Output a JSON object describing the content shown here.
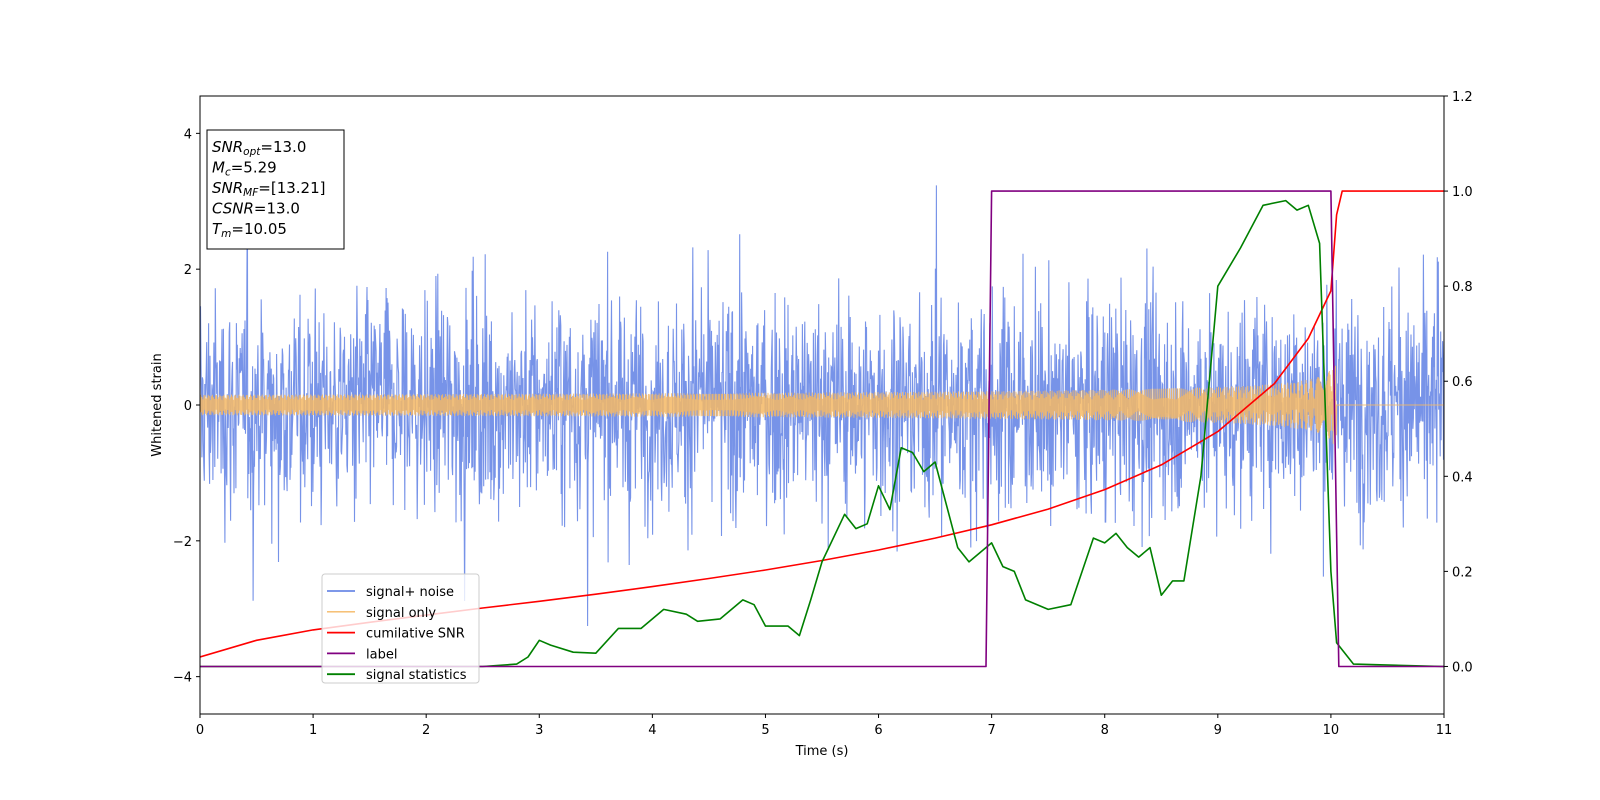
{
  "chart_data": {
    "type": "line",
    "xlabel": "Time (s)",
    "ylabel_left": "Whitened strain",
    "ylabel_right": "",
    "xlim": [
      0,
      11
    ],
    "ylim_left": [
      -4.55,
      4.55
    ],
    "ylim_right": [
      -0.1,
      1.2
    ],
    "x_ticks": [
      0,
      1,
      2,
      3,
      4,
      5,
      6,
      7,
      8,
      9,
      10,
      11
    ],
    "y_left_ticks": [
      -4,
      -2,
      0,
      2,
      4
    ],
    "y_right_ticks": [
      0.0,
      0.2,
      0.4,
      0.6,
      0.8,
      1.0,
      1.2
    ],
    "x_tick_labels": [
      "0",
      "1",
      "2",
      "3",
      "4",
      "5",
      "6",
      "7",
      "8",
      "9",
      "10",
      "11"
    ],
    "y_left_tick_labels": [
      "−4",
      "−2",
      "0",
      "2",
      "4"
    ],
    "y_right_tick_labels": [
      "0.0",
      "0.2",
      "0.4",
      "0.6",
      "0.8",
      "1.0",
      "1.2"
    ],
    "grid": false,
    "legend_position": "lower-left",
    "info_box": {
      "lines": [
        {
          "symbol": "SNR",
          "subscript": "opt",
          "value": "=13.0"
        },
        {
          "symbol": "M",
          "subscript": "c",
          "value": "=5.29"
        },
        {
          "symbol": "SNR",
          "subscript": "MF",
          "value": "=[13.21]"
        },
        {
          "symbol": "CSNR",
          "subscript": "",
          "value": "=13.0"
        },
        {
          "symbol": "T",
          "subscript": "m",
          "value": "=10.05"
        }
      ]
    },
    "colors": {
      "noise": "#6b8ae6",
      "signal": "#f5b865",
      "cumulative": "#ff0000",
      "label": "#800080",
      "statistics": "#008000"
    },
    "series": [
      {
        "name": "signal+ noise",
        "axis": "left",
        "kind": "noise-band",
        "sigma": 0.8,
        "typical_extent": [
          -2.2,
          2.2
        ],
        "extremes": [
          -4.1,
          4.18
        ],
        "x_range": [
          0,
          11
        ]
      },
      {
        "name": "signal only",
        "axis": "left",
        "kind": "chirp",
        "amplitude_start": 0.06,
        "amplitude_peak": 0.72,
        "merger_time": 10.05,
        "x_range": [
          0,
          11
        ]
      },
      {
        "name": "cumilative SNR",
        "axis": "right",
        "points": [
          [
            0,
            0.02
          ],
          [
            0.5,
            0.055
          ],
          [
            1,
            0.077
          ],
          [
            1.5,
            0.093
          ],
          [
            2,
            0.108
          ],
          [
            2.5,
            0.123
          ],
          [
            3,
            0.137
          ],
          [
            3.5,
            0.152
          ],
          [
            4,
            0.168
          ],
          [
            4.5,
            0.185
          ],
          [
            5,
            0.203
          ],
          [
            5.5,
            0.223
          ],
          [
            6,
            0.245
          ],
          [
            6.5,
            0.27
          ],
          [
            7,
            0.298
          ],
          [
            7.5,
            0.331
          ],
          [
            8,
            0.372
          ],
          [
            8.5,
            0.424
          ],
          [
            9,
            0.494
          ],
          [
            9.5,
            0.595
          ],
          [
            9.8,
            0.69
          ],
          [
            10,
            0.79
          ],
          [
            10.05,
            0.95
          ],
          [
            10.1,
            1.0
          ],
          [
            11,
            1.0
          ]
        ]
      },
      {
        "name": "label",
        "axis": "right",
        "points": [
          [
            0,
            0.0
          ],
          [
            6.95,
            0.0
          ],
          [
            7.0,
            1.0
          ],
          [
            10.0,
            1.0
          ],
          [
            10.07,
            0.0
          ],
          [
            11,
            0.0
          ]
        ]
      },
      {
        "name": "signal statistics",
        "axis": "right",
        "points": [
          [
            0,
            0.0
          ],
          [
            2.5,
            0.0
          ],
          [
            2.8,
            0.005
          ],
          [
            2.9,
            0.02
          ],
          [
            3.0,
            0.055
          ],
          [
            3.1,
            0.045
          ],
          [
            3.3,
            0.03
          ],
          [
            3.5,
            0.028
          ],
          [
            3.7,
            0.08
          ],
          [
            3.9,
            0.08
          ],
          [
            4.1,
            0.12
          ],
          [
            4.3,
            0.11
          ],
          [
            4.4,
            0.095
          ],
          [
            4.6,
            0.1
          ],
          [
            4.8,
            0.14
          ],
          [
            4.9,
            0.13
          ],
          [
            5.0,
            0.085
          ],
          [
            5.2,
            0.085
          ],
          [
            5.3,
            0.065
          ],
          [
            5.4,
            0.14
          ],
          [
            5.5,
            0.22
          ],
          [
            5.7,
            0.32
          ],
          [
            5.8,
            0.29
          ],
          [
            5.9,
            0.3
          ],
          [
            6.0,
            0.38
          ],
          [
            6.1,
            0.33
          ],
          [
            6.2,
            0.46
          ],
          [
            6.3,
            0.45
          ],
          [
            6.4,
            0.41
          ],
          [
            6.5,
            0.43
          ],
          [
            6.6,
            0.34
          ],
          [
            6.7,
            0.25
          ],
          [
            6.8,
            0.22
          ],
          [
            6.9,
            0.24
          ],
          [
            7.0,
            0.26
          ],
          [
            7.1,
            0.21
          ],
          [
            7.2,
            0.2
          ],
          [
            7.3,
            0.14
          ],
          [
            7.5,
            0.12
          ],
          [
            7.7,
            0.13
          ],
          [
            7.9,
            0.27
          ],
          [
            8.0,
            0.26
          ],
          [
            8.1,
            0.28
          ],
          [
            8.2,
            0.25
          ],
          [
            8.3,
            0.23
          ],
          [
            8.4,
            0.25
          ],
          [
            8.5,
            0.15
          ],
          [
            8.6,
            0.18
          ],
          [
            8.7,
            0.18
          ],
          [
            8.85,
            0.4
          ],
          [
            9.0,
            0.8
          ],
          [
            9.2,
            0.88
          ],
          [
            9.4,
            0.97
          ],
          [
            9.6,
            0.98
          ],
          [
            9.7,
            0.96
          ],
          [
            9.8,
            0.97
          ],
          [
            9.9,
            0.89
          ],
          [
            10.0,
            0.2
          ],
          [
            10.05,
            0.05
          ],
          [
            10.2,
            0.005
          ],
          [
            11,
            0.0
          ]
        ]
      }
    ]
  }
}
